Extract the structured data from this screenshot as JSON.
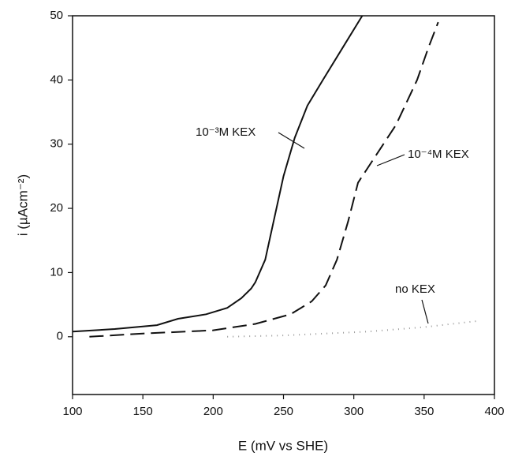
{
  "chart_data": {
    "type": "line",
    "x_label": "E (mV vs SHE)",
    "y_label": "i (µAcm⁻²)",
    "xlim": [
      100,
      400
    ],
    "ylim": [
      -9,
      50
    ],
    "xticks": [
      100,
      150,
      200,
      250,
      300,
      350,
      400
    ],
    "yticks": [
      0,
      10,
      20,
      30,
      40,
      50
    ],
    "series": [
      {
        "name": "10⁻³M KEX",
        "color": "#111111",
        "style": "solid",
        "x": [
          100,
          130,
          160,
          175,
          195,
          210,
          220,
          227,
          230,
          237,
          243,
          250,
          258,
          267,
          278,
          292,
          306
        ],
        "values": [
          0.8,
          1.2,
          1.8,
          2.8,
          3.5,
          4.5,
          6,
          7.5,
          8.5,
          12,
          18,
          25,
          31,
          36,
          40,
          45,
          50
        ]
      },
      {
        "name": "10⁻⁴M KEX",
        "color": "#111111",
        "style": "dashed",
        "x": [
          112,
          150,
          200,
          230,
          255,
          270,
          280,
          288,
          296,
          303,
          315,
          330,
          345,
          353,
          360
        ],
        "values": [
          0,
          0.5,
          1,
          2,
          3.5,
          5.5,
          8,
          12,
          18,
          24,
          28,
          33,
          40,
          45,
          49
        ]
      },
      {
        "name": "no KEX",
        "color": "#999999",
        "style": "dotted",
        "x": [
          210,
          250,
          310,
          350,
          390
        ],
        "values": [
          0,
          0.2,
          0.8,
          1.5,
          2.5
        ]
      }
    ]
  }
}
